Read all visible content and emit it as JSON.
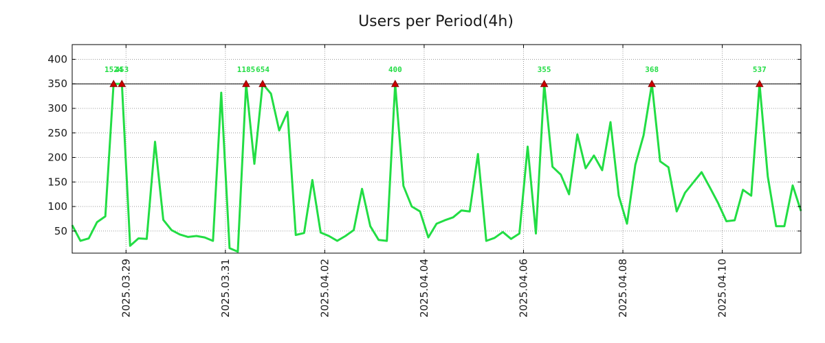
{
  "chart_data": {
    "type": "line",
    "title": "Users per Period(4h)",
    "xlabel": "",
    "ylabel": "",
    "ylim": [
      5,
      430
    ],
    "y_ticks": [
      50,
      100,
      150,
      200,
      250,
      300,
      350,
      400
    ],
    "x_range": [
      0,
      88
    ],
    "x_ticks": [
      {
        "x": 6.5,
        "label": "2025.03.29"
      },
      {
        "x": 18.5,
        "label": "2025.03.31"
      },
      {
        "x": 30.5,
        "label": "2025.04.02"
      },
      {
        "x": 42.5,
        "label": "2025.04.04"
      },
      {
        "x": 54.5,
        "label": "2025.04.06"
      },
      {
        "x": 66.5,
        "label": "2025.04.08"
      },
      {
        "x": 78.5,
        "label": "2025.04.10"
      }
    ],
    "threshold": 350,
    "grid": true,
    "line_color": "#22dd44",
    "threshold_color": "#000000",
    "marker_color": "#cc0000",
    "series": [
      {
        "name": "Users",
        "values": [
          62,
          30,
          35,
          68,
          80,
          350,
          350,
          20,
          35,
          34,
          232,
          73,
          52,
          43,
          38,
          40,
          37,
          30,
          332,
          15,
          8,
          350,
          187,
          350,
          330,
          255,
          293,
          42,
          46,
          154,
          47,
          40,
          30,
          40,
          52,
          136,
          60,
          32,
          30,
          350,
          142,
          100,
          90,
          37,
          65,
          72,
          78,
          92,
          90,
          207,
          30,
          36,
          48,
          34,
          45,
          222,
          45,
          350,
          181,
          165,
          125,
          247,
          178,
          204,
          174,
          272,
          122,
          65,
          185,
          245,
          350,
          192,
          180,
          90,
          128,
          149,
          170,
          139,
          107,
          70,
          72,
          134,
          122,
          350,
          161,
          60,
          60,
          143,
          91
        ]
      }
    ],
    "peaks": [
      {
        "x": 5,
        "label": "1524"
      },
      {
        "x": 6,
        "label": "453"
      },
      {
        "x": 21,
        "label": "1185"
      },
      {
        "x": 23,
        "label": "654"
      },
      {
        "x": 39,
        "label": "400"
      },
      {
        "x": 57,
        "label": "355"
      },
      {
        "x": 70,
        "label": "368"
      },
      {
        "x": 83,
        "label": "537"
      }
    ]
  }
}
